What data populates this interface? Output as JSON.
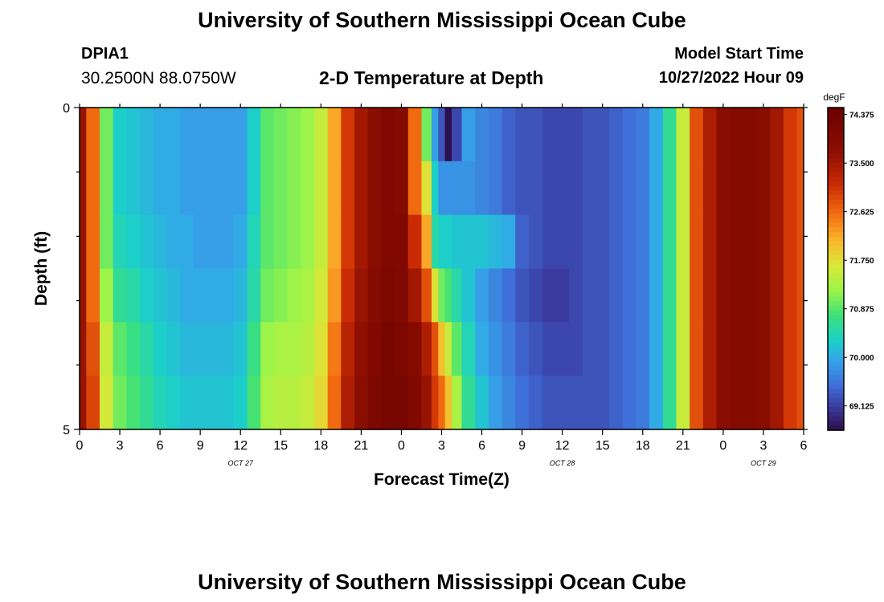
{
  "header": {
    "title": "University of Southern Mississippi Ocean Cube",
    "station": "DPIA1",
    "coordinates": "30.2500N  88.0750W",
    "subtitle": "2-D Temperature at Depth",
    "model_start_label": "Model Start Time",
    "model_start_value": "10/27/2022 Hour 09"
  },
  "footer": {
    "title": "University of Southern Mississippi Ocean Cube"
  },
  "chart_data": {
    "type": "heatmap",
    "title": "2-D Temperature at Depth",
    "xlabel": "Forecast Time(Z)",
    "ylabel": "Depth (ft)",
    "x_tick_labels": [
      "0",
      "3",
      "6",
      "9",
      "12",
      "15",
      "18",
      "21",
      "0",
      "3",
      "6",
      "9",
      "12",
      "15",
      "18",
      "21",
      "0",
      "3",
      "6"
    ],
    "x_date_labels": [
      {
        "label": "OCT 27",
        "hour": 12
      },
      {
        "label": "OCT 28",
        "hour": 36
      },
      {
        "label": "OCT 29",
        "hour": 51
      }
    ],
    "x_range_hours": [
      0,
      54
    ],
    "y_tick_labels": [
      "0",
      "5"
    ],
    "y_range": [
      0,
      5
    ],
    "colorbar": {
      "unit": "degF",
      "min": 68.6875,
      "max": 74.5,
      "labels": [
        "74.375",
        "73.500",
        "72.625",
        "71.750",
        "70.875",
        "70.000",
        "69.125"
      ],
      "label_values": [
        74.375,
        73.5,
        72.625,
        71.75,
        70.875,
        70.0,
        69.125
      ],
      "colors": [
        "#2b0f4a",
        "#3b3a9e",
        "#3f6fd8",
        "#35a5ea",
        "#1cd0c9",
        "#3be07a",
        "#9cf548",
        "#d9e838",
        "#fbb62b",
        "#f26a10",
        "#cb2b04",
        "#8e0f02",
        "#6a0000"
      ],
      "color_stops": [
        68.6875,
        69.1,
        69.5,
        69.95,
        70.3,
        70.75,
        71.2,
        71.65,
        72.1,
        72.6,
        73.1,
        73.7,
        74.5
      ]
    },
    "depth_levels": [
      0,
      1,
      2,
      3,
      4,
      5
    ],
    "times_hours": [
      0,
      1,
      2,
      3,
      4,
      5,
      6,
      7,
      8,
      9,
      10,
      11,
      12,
      13,
      14,
      15,
      16,
      17,
      18,
      19,
      20,
      21,
      22,
      23,
      24,
      25,
      26,
      26.5,
      27,
      27.5,
      28,
      29,
      30,
      31,
      32,
      33,
      34,
      35,
      36,
      37,
      38,
      39,
      40,
      41,
      42,
      43,
      44,
      45,
      46,
      47,
      48,
      49,
      50,
      51,
      52,
      53,
      54
    ],
    "temperature_profiles": [
      {
        "depth_ft": 0,
        "values": [
          73.6,
          72.6,
          71.0,
          70.3,
          70.2,
          70.1,
          70.0,
          70.0,
          69.9,
          69.9,
          69.9,
          69.9,
          69.9,
          70.3,
          70.9,
          71.0,
          71.1,
          71.2,
          71.5,
          72.2,
          73.0,
          73.5,
          73.8,
          74.0,
          73.9,
          72.6,
          71.0,
          69.9,
          69.3,
          68.7,
          69.2,
          69.9,
          69.7,
          69.6,
          69.4,
          69.3,
          69.3,
          69.2,
          69.2,
          69.2,
          69.3,
          69.3,
          69.4,
          69.5,
          69.6,
          70.0,
          70.6,
          71.5,
          72.8,
          73.4,
          73.8,
          73.9,
          73.9,
          73.8,
          73.5,
          73.0,
          72.8
        ]
      },
      {
        "depth_ft": 1,
        "values": [
          73.6,
          72.6,
          71.0,
          70.3,
          70.2,
          70.1,
          70.0,
          70.0,
          69.9,
          69.9,
          69.9,
          69.9,
          69.9,
          70.3,
          70.9,
          71.0,
          71.1,
          71.2,
          71.5,
          72.2,
          73.0,
          73.5,
          73.8,
          74.0,
          73.9,
          72.6,
          71.7,
          70.3,
          69.8,
          69.8,
          69.8,
          69.8,
          69.7,
          69.6,
          69.4,
          69.3,
          69.3,
          69.2,
          69.2,
          69.2,
          69.3,
          69.3,
          69.4,
          69.5,
          69.6,
          70.0,
          70.6,
          71.5,
          72.8,
          73.4,
          73.8,
          73.9,
          73.9,
          73.8,
          73.5,
          73.0,
          72.8
        ]
      },
      {
        "depth_ft": 2,
        "values": [
          73.6,
          72.6,
          71.0,
          70.4,
          70.3,
          70.2,
          70.1,
          70.0,
          70.0,
          69.9,
          69.9,
          69.9,
          70.0,
          70.4,
          70.9,
          71.0,
          71.1,
          71.2,
          71.5,
          72.2,
          73.0,
          73.5,
          73.8,
          74.0,
          74.0,
          73.1,
          72.2,
          70.5,
          70.3,
          70.3,
          70.2,
          70.2,
          70.2,
          70.1,
          70.0,
          69.4,
          69.3,
          69.2,
          69.2,
          69.2,
          69.3,
          69.3,
          69.4,
          69.5,
          69.6,
          70.0,
          70.6,
          71.5,
          72.8,
          73.4,
          73.8,
          73.9,
          73.9,
          73.8,
          73.5,
          73.0,
          72.8
        ]
      },
      {
        "depth_ft": 3,
        "values": [
          73.6,
          72.6,
          71.2,
          70.6,
          70.5,
          70.3,
          70.2,
          70.1,
          70.0,
          70.0,
          70.0,
          70.0,
          70.1,
          70.5,
          71.0,
          71.1,
          71.2,
          71.3,
          71.6,
          72.3,
          73.1,
          73.6,
          73.9,
          74.1,
          74.0,
          73.5,
          72.8,
          71.7,
          71.0,
          70.8,
          70.5,
          70.2,
          69.9,
          69.7,
          69.5,
          69.3,
          69.2,
          69.1,
          69.1,
          69.2,
          69.3,
          69.3,
          69.4,
          69.5,
          69.6,
          70.0,
          70.6,
          71.5,
          72.8,
          73.4,
          73.8,
          73.9,
          73.9,
          73.8,
          73.5,
          73.0,
          72.8
        ]
      },
      {
        "depth_ft": 4,
        "values": [
          73.6,
          72.8,
          71.5,
          70.9,
          70.7,
          70.5,
          70.3,
          70.2,
          70.1,
          70.1,
          70.1,
          70.1,
          70.2,
          70.7,
          71.2,
          71.3,
          71.3,
          71.4,
          71.7,
          72.5,
          73.3,
          73.7,
          74.0,
          74.2,
          74.1,
          73.9,
          73.4,
          72.8,
          72.0,
          71.5,
          70.9,
          70.4,
          70.0,
          69.8,
          69.6,
          69.4,
          69.3,
          69.2,
          69.2,
          69.2,
          69.3,
          69.3,
          69.4,
          69.5,
          69.6,
          70.0,
          70.6,
          71.5,
          72.8,
          73.4,
          73.8,
          73.9,
          73.9,
          73.8,
          73.5,
          73.0,
          72.8
        ]
      },
      {
        "depth_ft": 5,
        "values": [
          73.6,
          72.9,
          71.6,
          71.0,
          70.8,
          70.6,
          70.4,
          70.3,
          70.2,
          70.2,
          70.2,
          70.2,
          70.3,
          70.8,
          71.3,
          71.4,
          71.4,
          71.5,
          71.8,
          72.6,
          73.4,
          73.8,
          74.1,
          74.2,
          74.2,
          74.0,
          73.6,
          73.0,
          72.6,
          72.0,
          71.3,
          70.6,
          70.2,
          69.9,
          69.7,
          69.5,
          69.4,
          69.3,
          69.3,
          69.3,
          69.3,
          69.3,
          69.4,
          69.5,
          69.6,
          70.0,
          70.6,
          71.5,
          72.8,
          73.4,
          73.8,
          73.9,
          73.9,
          73.8,
          73.5,
          73.0,
          72.8
        ]
      }
    ]
  }
}
